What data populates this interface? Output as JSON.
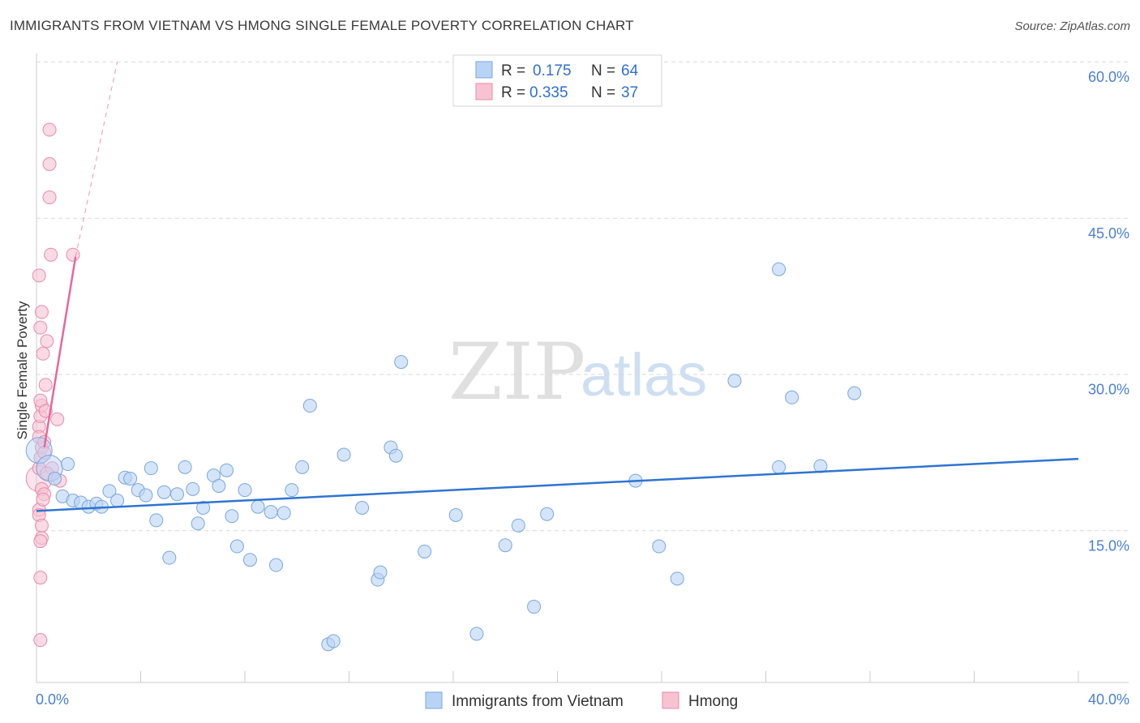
{
  "header": {
    "title": "IMMIGRANTS FROM VIETNAM VS HMONG SINGLE FEMALE POVERTY CORRELATION CHART",
    "source": "Source: ZipAtlas.com"
  },
  "watermark": {
    "zip": "ZIP",
    "atlas": "atlas"
  },
  "colors": {
    "blue_fill": "#b9d3f5",
    "blue_stroke": "#7aa6e0",
    "blue_line": "#2f74d0",
    "pink_fill": "#f7c3d3",
    "pink_stroke": "#e88aaa",
    "pink_line": "#e8679a",
    "grid": "#d9d9d9",
    "tick_label": "#4a7fd4"
  },
  "legend": {
    "rows": [
      {
        "r_label": "R =",
        "r_value": "0.175",
        "n_label": "N =",
        "n_value": "64"
      },
      {
        "r_label": "R =",
        "r_value": "0.335",
        "n_label": "N =",
        "n_value": "37"
      }
    ]
  },
  "chart_data": {
    "type": "scatter",
    "title": "IMMIGRANTS FROM VIETNAM VS HMONG SINGLE FEMALE POVERTY CORRELATION CHART",
    "xlabel": "",
    "ylabel": "Single Female Poverty",
    "xlim": [
      0,
      40
    ],
    "ylim": [
      0,
      62
    ],
    "x_tick_labels": [
      "0.0%",
      "40.0%"
    ],
    "y_ticks": [
      15,
      30,
      45,
      60
    ],
    "y_tick_labels": [
      "15.0%",
      "30.0%",
      "45.0%",
      "60.0%"
    ],
    "legend_position": "top-center",
    "series": [
      {
        "name": "Immigrants from Vietnam",
        "color": "blue",
        "r": 0.175,
        "n": 64,
        "trend": {
          "x": [
            0,
            40
          ],
          "y": [
            16.9,
            21.9
          ]
        },
        "points": [
          {
            "x": 0.1,
            "y": 22.7,
            "big": true
          },
          {
            "x": 0.5,
            "y": 21.0,
            "big": true
          },
          {
            "x": 0.7,
            "y": 20.0
          },
          {
            "x": 1.0,
            "y": 18.3
          },
          {
            "x": 1.2,
            "y": 21.4
          },
          {
            "x": 1.4,
            "y": 17.9
          },
          {
            "x": 1.7,
            "y": 17.7
          },
          {
            "x": 2.0,
            "y": 17.3
          },
          {
            "x": 2.3,
            "y": 17.6
          },
          {
            "x": 2.5,
            "y": 17.3
          },
          {
            "x": 2.8,
            "y": 18.8
          },
          {
            "x": 3.1,
            "y": 17.9
          },
          {
            "x": 3.4,
            "y": 20.1
          },
          {
            "x": 3.6,
            "y": 20.0
          },
          {
            "x": 3.9,
            "y": 18.9
          },
          {
            "x": 4.2,
            "y": 18.4
          },
          {
            "x": 4.4,
            "y": 21.0
          },
          {
            "x": 4.6,
            "y": 16.0
          },
          {
            "x": 4.9,
            "y": 18.7
          },
          {
            "x": 5.1,
            "y": 12.4
          },
          {
            "x": 5.4,
            "y": 18.5
          },
          {
            "x": 5.7,
            "y": 21.1
          },
          {
            "x": 6.0,
            "y": 19.0
          },
          {
            "x": 6.2,
            "y": 15.7
          },
          {
            "x": 6.4,
            "y": 17.2
          },
          {
            "x": 6.8,
            "y": 20.3
          },
          {
            "x": 7.0,
            "y": 19.3
          },
          {
            "x": 7.3,
            "y": 20.8
          },
          {
            "x": 7.5,
            "y": 16.4
          },
          {
            "x": 7.7,
            "y": 13.5
          },
          {
            "x": 8.0,
            "y": 18.9
          },
          {
            "x": 8.2,
            "y": 12.2
          },
          {
            "x": 8.5,
            "y": 17.3
          },
          {
            "x": 9.0,
            "y": 16.8
          },
          {
            "x": 9.2,
            "y": 11.7
          },
          {
            "x": 9.5,
            "y": 16.7
          },
          {
            "x": 9.8,
            "y": 18.9
          },
          {
            "x": 10.2,
            "y": 21.1
          },
          {
            "x": 10.5,
            "y": 27.0
          },
          {
            "x": 11.2,
            "y": 4.1
          },
          {
            "x": 11.4,
            "y": 4.4
          },
          {
            "x": 11.8,
            "y": 22.3
          },
          {
            "x": 12.5,
            "y": 17.2
          },
          {
            "x": 13.1,
            "y": 10.3
          },
          {
            "x": 13.2,
            "y": 11.0
          },
          {
            "x": 13.6,
            "y": 23.0
          },
          {
            "x": 13.8,
            "y": 22.2
          },
          {
            "x": 14.0,
            "y": 31.2
          },
          {
            "x": 14.9,
            "y": 13.0
          },
          {
            "x": 16.1,
            "y": 16.5
          },
          {
            "x": 16.9,
            "y": 5.1
          },
          {
            "x": 18.0,
            "y": 13.6
          },
          {
            "x": 18.5,
            "y": 15.5
          },
          {
            "x": 19.1,
            "y": 7.7
          },
          {
            "x": 19.6,
            "y": 16.6
          },
          {
            "x": 23.0,
            "y": 19.8
          },
          {
            "x": 23.9,
            "y": 13.5
          },
          {
            "x": 24.6,
            "y": 10.4
          },
          {
            "x": 26.8,
            "y": 29.4
          },
          {
            "x": 28.5,
            "y": 40.1
          },
          {
            "x": 28.5,
            "y": 21.1
          },
          {
            "x": 29.0,
            "y": 27.8
          },
          {
            "x": 30.1,
            "y": 21.2
          },
          {
            "x": 31.4,
            "y": 28.2
          }
        ]
      },
      {
        "name": "Hmong",
        "color": "pink",
        "r": 0.335,
        "n": 37,
        "trend": {
          "x": [
            0.3,
            1.5
          ],
          "y": [
            23.0,
            41.3
          ]
        },
        "trend_ext": {
          "x": [
            1.5,
            3.1
          ],
          "y": [
            41.3,
            60.0
          ]
        },
        "points": [
          {
            "x": 0.1,
            "y": 20.0,
            "big": true
          },
          {
            "x": 0.15,
            "y": 22.0
          },
          {
            "x": 0.2,
            "y": 23.0
          },
          {
            "x": 0.1,
            "y": 25.0
          },
          {
            "x": 0.15,
            "y": 26.0
          },
          {
            "x": 0.2,
            "y": 27.0
          },
          {
            "x": 0.1,
            "y": 24.0
          },
          {
            "x": 0.1,
            "y": 21.0
          },
          {
            "x": 0.2,
            "y": 19.0
          },
          {
            "x": 0.3,
            "y": 18.5
          },
          {
            "x": 0.1,
            "y": 17.0
          },
          {
            "x": 0.1,
            "y": 16.5
          },
          {
            "x": 0.2,
            "y": 15.5
          },
          {
            "x": 0.2,
            "y": 14.3
          },
          {
            "x": 0.15,
            "y": 14.0
          },
          {
            "x": 0.15,
            "y": 10.5
          },
          {
            "x": 0.15,
            "y": 4.5
          },
          {
            "x": 0.1,
            "y": 39.5
          },
          {
            "x": 0.15,
            "y": 34.5
          },
          {
            "x": 0.2,
            "y": 36.0
          },
          {
            "x": 0.25,
            "y": 32.0
          },
          {
            "x": 0.35,
            "y": 29.0
          },
          {
            "x": 0.4,
            "y": 33.2
          },
          {
            "x": 0.5,
            "y": 53.5
          },
          {
            "x": 0.5,
            "y": 50.2
          },
          {
            "x": 0.5,
            "y": 47.0
          },
          {
            "x": 0.55,
            "y": 41.5
          },
          {
            "x": 0.8,
            "y": 25.7
          },
          {
            "x": 0.9,
            "y": 19.8
          },
          {
            "x": 1.4,
            "y": 41.5
          },
          {
            "x": 0.6,
            "y": 21.0
          },
          {
            "x": 0.3,
            "y": 23.5
          },
          {
            "x": 0.4,
            "y": 20.5
          },
          {
            "x": 0.25,
            "y": 18.0
          },
          {
            "x": 0.15,
            "y": 27.5
          },
          {
            "x": 0.3,
            "y": 22.5
          },
          {
            "x": 0.35,
            "y": 26.5
          }
        ]
      }
    ]
  }
}
